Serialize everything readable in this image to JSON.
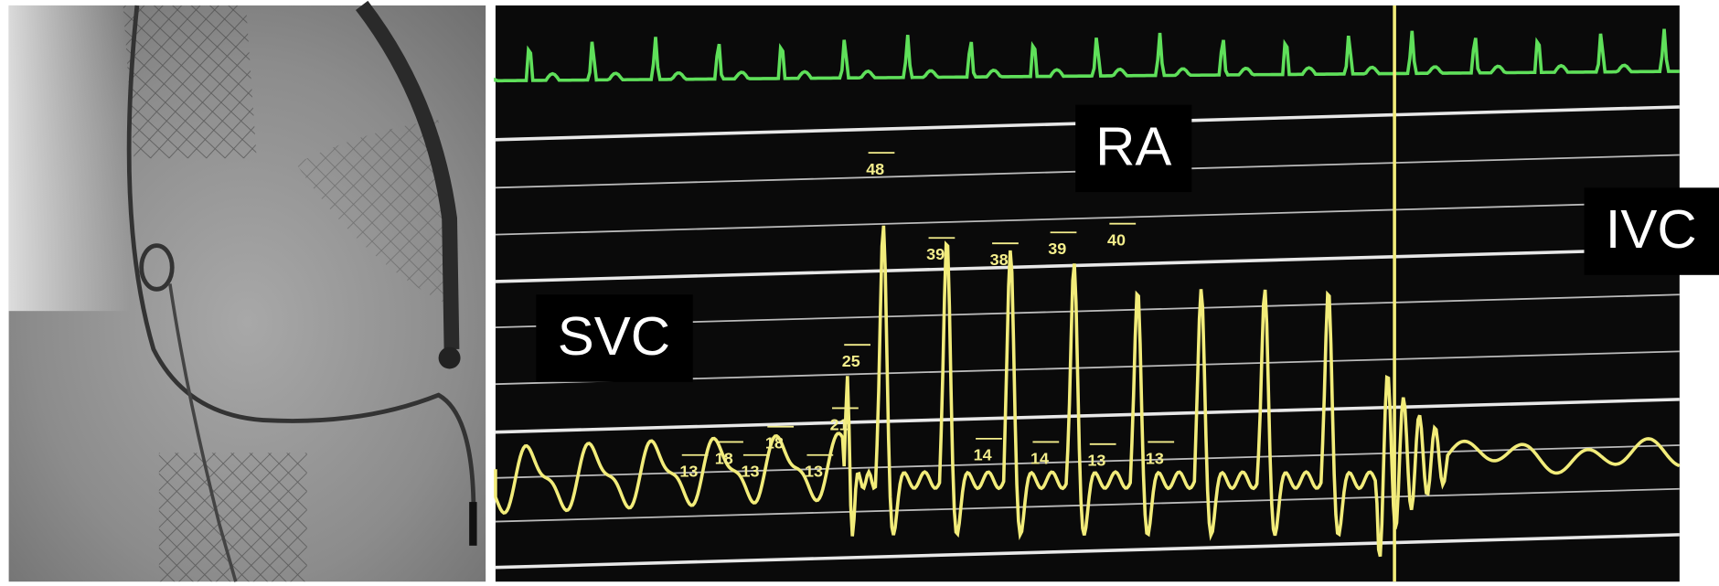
{
  "labels": {
    "svc": "SVC",
    "ra": "RA",
    "ivc": "IVC"
  },
  "annotations": [
    "48",
    "39",
    "38",
    "39",
    "40",
    "25",
    "21",
    "18",
    "18",
    "13",
    "13",
    "13",
    "14",
    "14",
    "13",
    "13"
  ]
}
